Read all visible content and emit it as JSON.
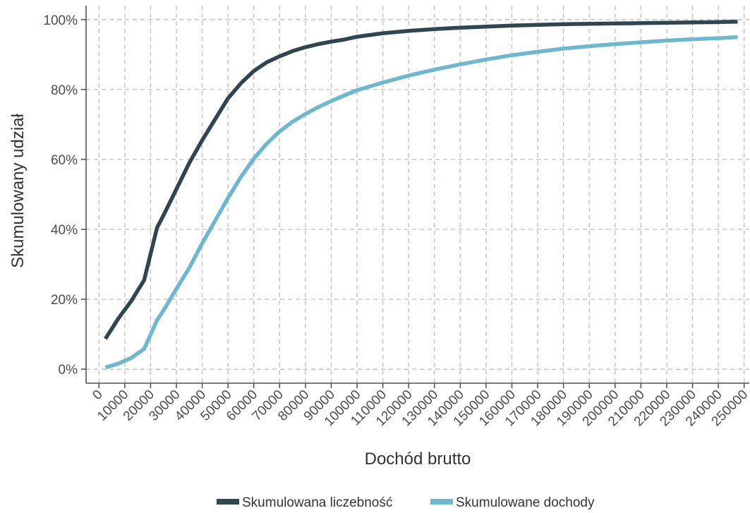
{
  "chart_data": {
    "type": "line",
    "title": "",
    "xlabel": "Dochód brutto",
    "ylabel": "Skumulowany udział",
    "xlim": [
      -5000,
      252000
    ],
    "ylim": [
      -0.04,
      1.04
    ],
    "x_ticks": [
      0,
      10000,
      20000,
      30000,
      40000,
      50000,
      60000,
      70000,
      80000,
      90000,
      100000,
      110000,
      120000,
      130000,
      140000,
      150000,
      160000,
      170000,
      180000,
      190000,
      200000,
      210000,
      220000,
      230000,
      240000,
      250000
    ],
    "y_ticks": [
      0,
      0.2,
      0.4,
      0.6,
      0.8,
      1.0
    ],
    "y_tick_labels": [
      "0%",
      "20%",
      "40%",
      "60%",
      "80%",
      "100%"
    ],
    "grid": true,
    "legend_position": "bottom",
    "series": [
      {
        "name": "Skumulowana liczebność",
        "color": "#2f4550",
        "x": [
          2500,
          7500,
          12500,
          17500,
          22500,
          25000,
          30000,
          35000,
          40000,
          45000,
          50000,
          55000,
          60000,
          65000,
          70000,
          75000,
          80000,
          85000,
          90000,
          95000,
          100000,
          110000,
          120000,
          130000,
          140000,
          150000,
          160000,
          170000,
          180000,
          190000,
          200000,
          210000,
          220000,
          230000,
          240000,
          247500
        ],
        "y": [
          0.087,
          0.145,
          0.195,
          0.255,
          0.405,
          0.44,
          0.515,
          0.59,
          0.655,
          0.715,
          0.775,
          0.818,
          0.853,
          0.878,
          0.895,
          0.91,
          0.921,
          0.93,
          0.937,
          0.943,
          0.951,
          0.961,
          0.968,
          0.973,
          0.977,
          0.98,
          0.983,
          0.985,
          0.987,
          0.988,
          0.989,
          0.99,
          0.991,
          0.992,
          0.993,
          0.994
        ]
      },
      {
        "name": "Skumulowane dochody",
        "color": "#6db8cf",
        "x": [
          2500,
          7500,
          12500,
          17500,
          22500,
          25000,
          30000,
          35000,
          40000,
          45000,
          50000,
          55000,
          60000,
          65000,
          70000,
          75000,
          80000,
          85000,
          90000,
          95000,
          100000,
          110000,
          120000,
          130000,
          140000,
          150000,
          160000,
          170000,
          180000,
          190000,
          200000,
          210000,
          220000,
          230000,
          240000,
          247500
        ],
        "y": [
          0.005,
          0.016,
          0.032,
          0.058,
          0.14,
          0.168,
          0.23,
          0.29,
          0.36,
          0.425,
          0.49,
          0.55,
          0.602,
          0.645,
          0.68,
          0.708,
          0.73,
          0.75,
          0.767,
          0.783,
          0.798,
          0.82,
          0.84,
          0.857,
          0.872,
          0.886,
          0.898,
          0.908,
          0.917,
          0.924,
          0.93,
          0.935,
          0.94,
          0.944,
          0.947,
          0.95
        ]
      }
    ]
  }
}
